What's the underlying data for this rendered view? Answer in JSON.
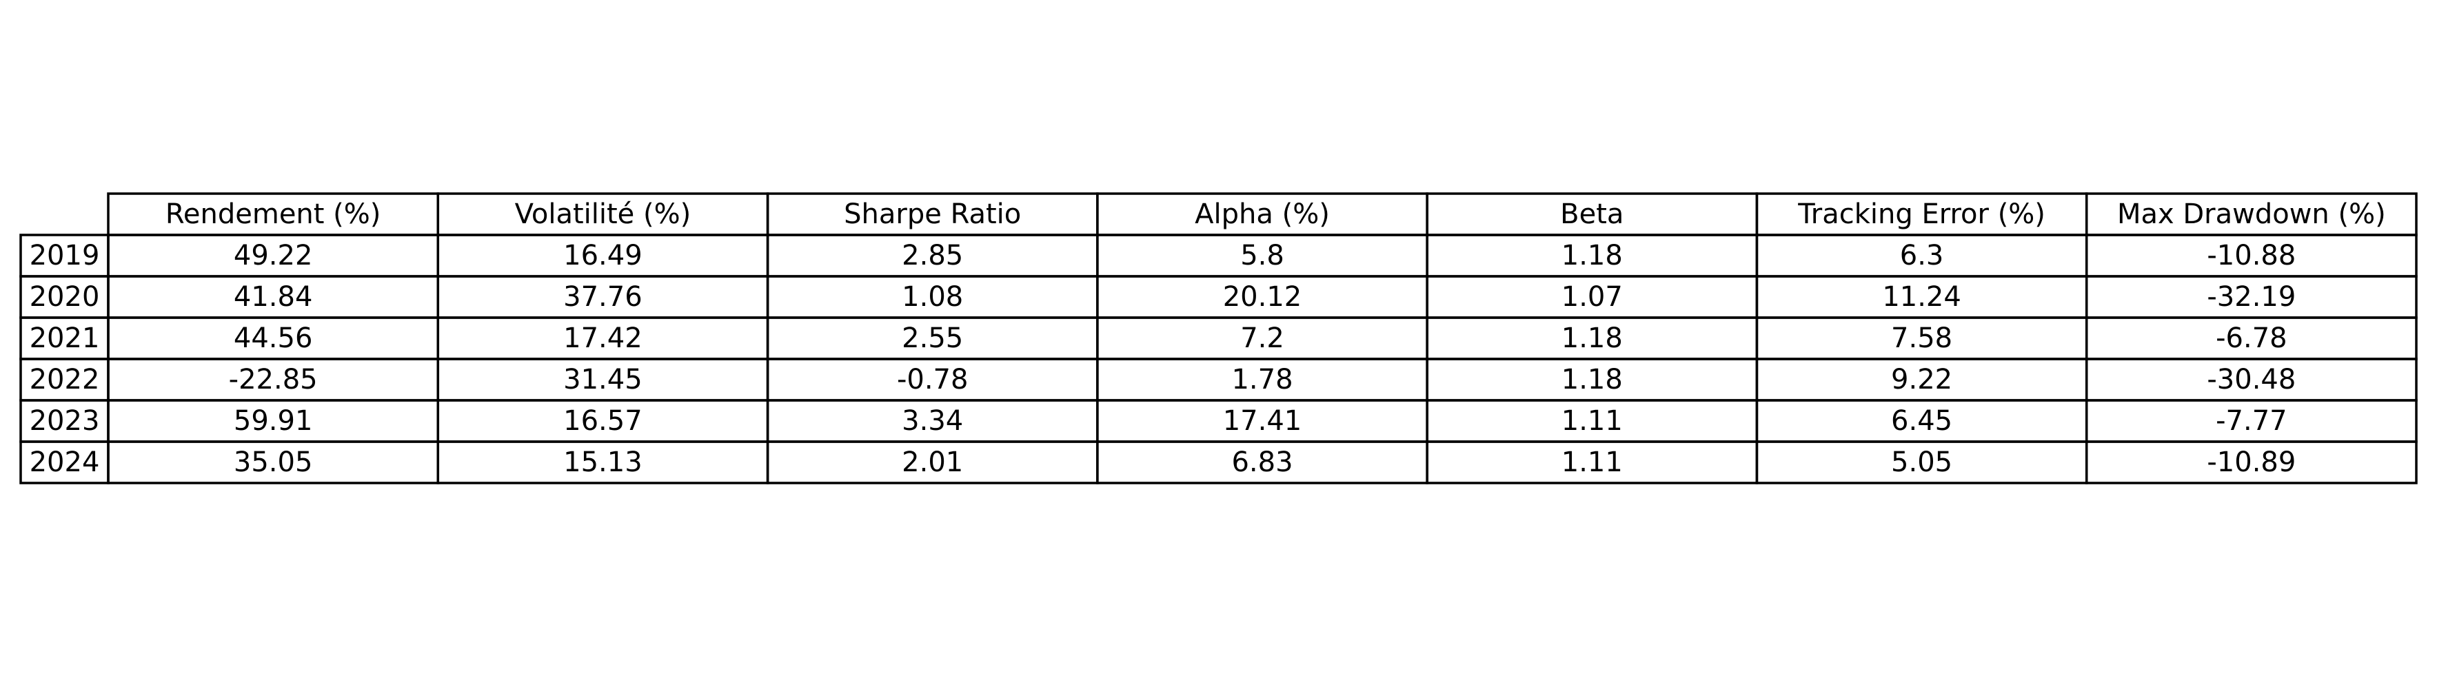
{
  "chart_data": {
    "type": "table",
    "title": "",
    "columns": [
      "Rendement (%)",
      "Volatilité (%)",
      "Sharpe Ratio",
      "Alpha (%)",
      "Beta",
      "Tracking Error (%)",
      "Max Drawdown (%)"
    ],
    "rows": [
      {
        "label": "2019",
        "values": [
          "49.22",
          "16.49",
          "2.85",
          "5.8",
          "1.18",
          "6.3",
          "-10.88"
        ]
      },
      {
        "label": "2020",
        "values": [
          "41.84",
          "37.76",
          "1.08",
          "20.12",
          "1.07",
          "11.24",
          "-32.19"
        ]
      },
      {
        "label": "2021",
        "values": [
          "44.56",
          "17.42",
          "2.55",
          "7.2",
          "1.18",
          "7.58",
          "-6.78"
        ]
      },
      {
        "label": "2022",
        "values": [
          "-22.85",
          "31.45",
          "-0.78",
          "1.78",
          "1.18",
          "9.22",
          "-30.48"
        ]
      },
      {
        "label": "2023",
        "values": [
          "59.91",
          "16.57",
          "3.34",
          "17.41",
          "1.11",
          "6.45",
          "-7.77"
        ]
      },
      {
        "label": "2024",
        "values": [
          "35.05",
          "15.13",
          "2.01",
          "6.83",
          "1.11",
          "5.05",
          "-10.89"
        ]
      }
    ]
  }
}
